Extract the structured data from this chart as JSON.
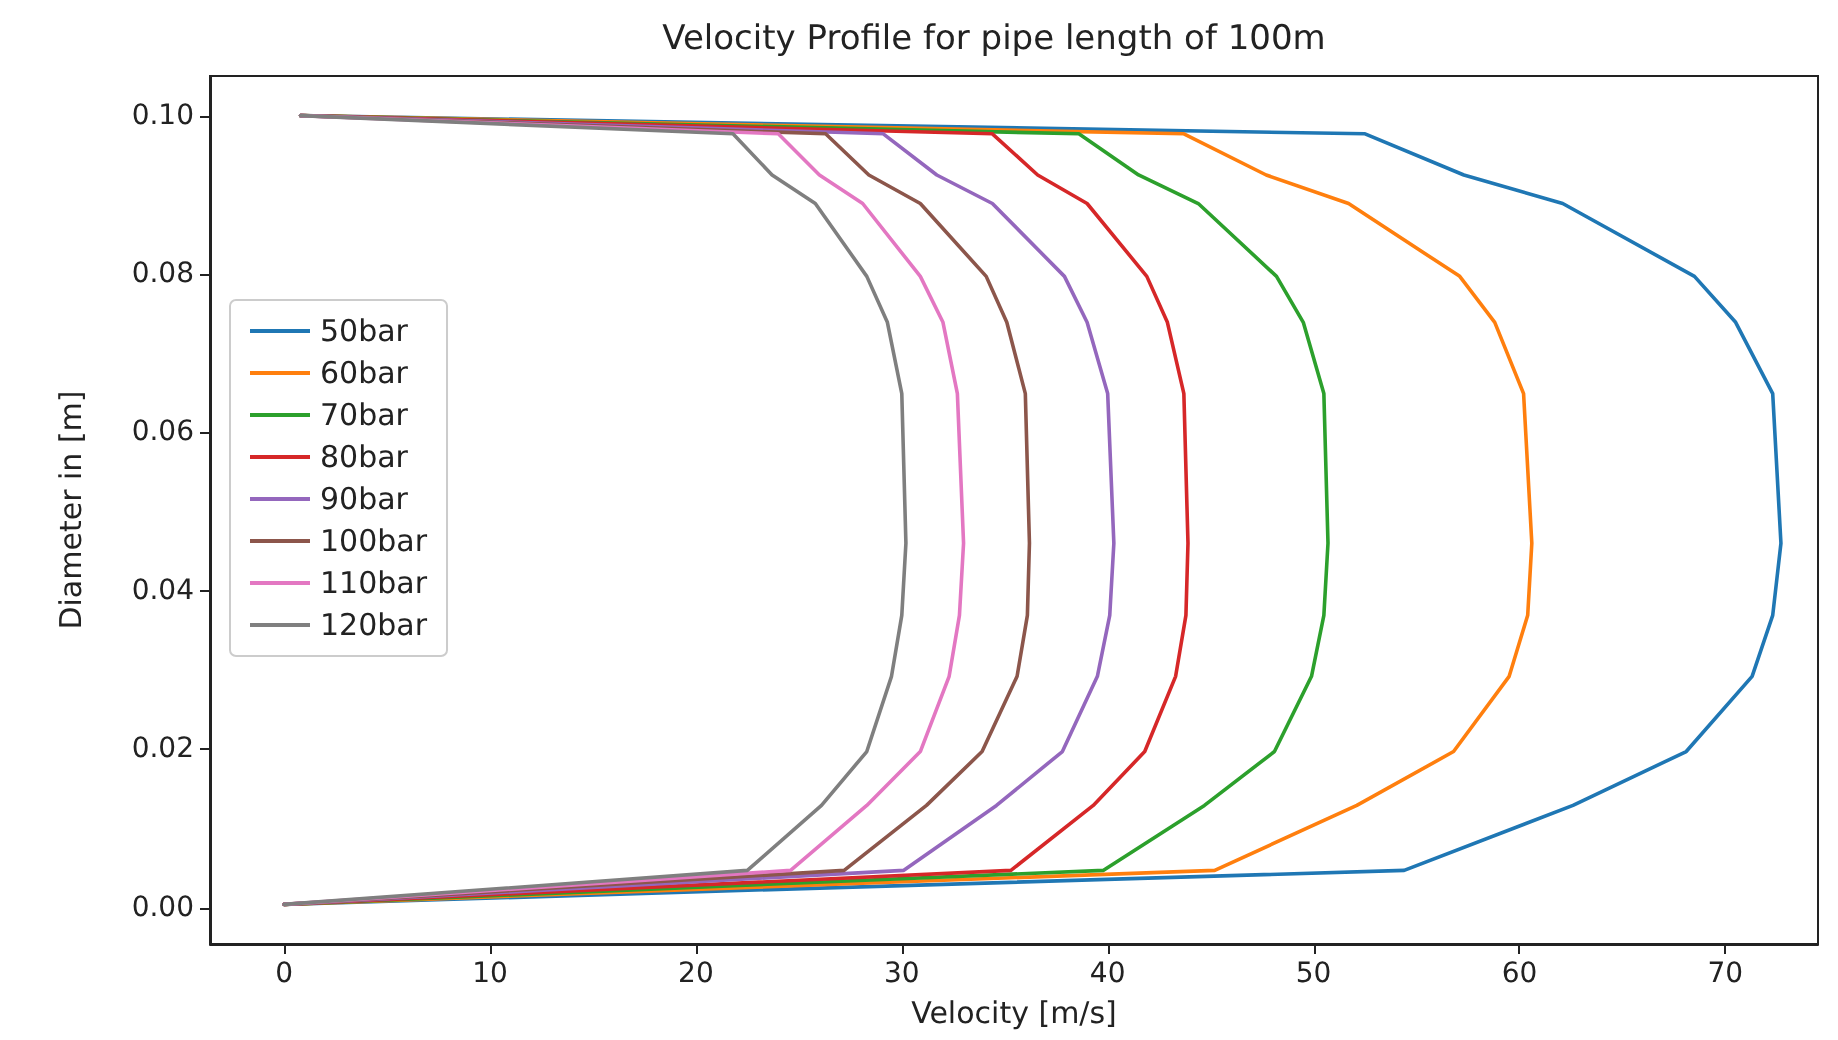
{
  "chart_data": {
    "type": "line",
    "title": "Velocity Profile for pipe length of 100m",
    "xlabel": "Velocity [m/s]",
    "ylabel": "Diameter in [m]",
    "xlim": [
      -3.6,
      74.5
    ],
    "xticks": [
      0,
      10,
      20,
      30,
      40,
      50,
      60,
      70
    ],
    "ylim": [
      -0.0046,
      0.105
    ],
    "yticks": [
      {
        "value": 0,
        "label": "0.00"
      },
      {
        "value": 0.02,
        "label": "0.02"
      },
      {
        "value": 0.04,
        "label": "0.04"
      },
      {
        "value": 0.06,
        "label": "0.06"
      },
      {
        "value": 0.08,
        "label": "0.08"
      },
      {
        "value": 0.1,
        "label": "0.10"
      }
    ],
    "grid": false,
    "legend": "left",
    "marker": "none",
    "line_style": "solid",
    "series": [
      {
        "name": "50bar",
        "color": "#1f77b4",
        "x": [
          0,
          54.4,
          62.6,
          68.1,
          71.3,
          72.3,
          72.7,
          72.3,
          70.5,
          68.5,
          62.1,
          57.3,
          52.5,
          0.8
        ],
        "values": [
          0.0004,
          0.0047,
          0.0129,
          0.0197,
          0.0292,
          0.0369,
          0.046,
          0.0649,
          0.0739,
          0.0797,
          0.0889,
          0.0925,
          0.0977,
          0.1
        ]
      },
      {
        "name": "60bar",
        "color": "#ff7f0e",
        "x": [
          0,
          45.2,
          52.1,
          56.8,
          59.5,
          60.4,
          60.6,
          60.2,
          58.8,
          57.1,
          51.7,
          47.7,
          43.7,
          0.8
        ],
        "values": [
          0.0004,
          0.0047,
          0.0129,
          0.0197,
          0.0292,
          0.0369,
          0.046,
          0.0649,
          0.0739,
          0.0797,
          0.0889,
          0.0925,
          0.0977,
          0.1
        ]
      },
      {
        "name": "70bar",
        "color": "#2ca02c",
        "x": [
          0,
          39.8,
          44.7,
          48.1,
          49.9,
          50.5,
          50.7,
          50.5,
          49.5,
          48.2,
          44.4,
          41.5,
          38.6,
          0.8
        ],
        "values": [
          0.0004,
          0.0047,
          0.0129,
          0.0197,
          0.0292,
          0.0369,
          0.046,
          0.0649,
          0.0739,
          0.0797,
          0.0889,
          0.0925,
          0.0977,
          0.1
        ]
      },
      {
        "name": "80bar",
        "color": "#d62728",
        "x": [
          0,
          35.3,
          39.3,
          41.8,
          43.3,
          43.8,
          43.9,
          43.7,
          42.9,
          41.9,
          39.0,
          36.6,
          34.4,
          0.8
        ],
        "values": [
          0.0004,
          0.0047,
          0.0129,
          0.0197,
          0.0292,
          0.0369,
          0.046,
          0.0649,
          0.0739,
          0.0797,
          0.0889,
          0.0925,
          0.0977,
          0.1
        ]
      },
      {
        "name": "90bar",
        "color": "#9467bd",
        "x": [
          0,
          30.1,
          34.6,
          37.8,
          39.5,
          40.1,
          40.3,
          40.0,
          39.0,
          37.9,
          34.4,
          31.7,
          29.1,
          0.8
        ],
        "values": [
          0.0004,
          0.0047,
          0.0129,
          0.0197,
          0.0292,
          0.0369,
          0.046,
          0.0649,
          0.0739,
          0.0797,
          0.0889,
          0.0925,
          0.0977,
          0.1
        ]
      },
      {
        "name": "100bar",
        "color": "#8c564b",
        "x": [
          0,
          27.2,
          31.2,
          33.9,
          35.6,
          36.1,
          36.2,
          36.0,
          35.1,
          34.1,
          30.9,
          28.4,
          26.3,
          0.8
        ],
        "values": [
          0.0004,
          0.0047,
          0.0129,
          0.0197,
          0.0292,
          0.0369,
          0.046,
          0.0649,
          0.0739,
          0.0797,
          0.0889,
          0.0925,
          0.0977,
          0.1
        ]
      },
      {
        "name": "110bar",
        "color": "#e377c2",
        "x": [
          0,
          24.6,
          28.3,
          30.9,
          32.3,
          32.8,
          33.0,
          32.7,
          32.0,
          30.9,
          28.1,
          26.0,
          24.0,
          0.8
        ],
        "values": [
          0.0004,
          0.0047,
          0.0129,
          0.0197,
          0.0292,
          0.0369,
          0.046,
          0.0649,
          0.0739,
          0.0797,
          0.0889,
          0.0925,
          0.0977,
          0.1
        ]
      },
      {
        "name": "120bar",
        "color": "#7f7f7f",
        "x": [
          0,
          22.5,
          26.1,
          28.3,
          29.5,
          30.0,
          30.2,
          30.0,
          29.3,
          28.3,
          25.8,
          23.7,
          21.8,
          0.8
        ],
        "values": [
          0.0004,
          0.0047,
          0.0129,
          0.0197,
          0.0292,
          0.0369,
          0.046,
          0.0649,
          0.0739,
          0.0797,
          0.0889,
          0.0925,
          0.0977,
          0.1
        ]
      }
    ]
  }
}
